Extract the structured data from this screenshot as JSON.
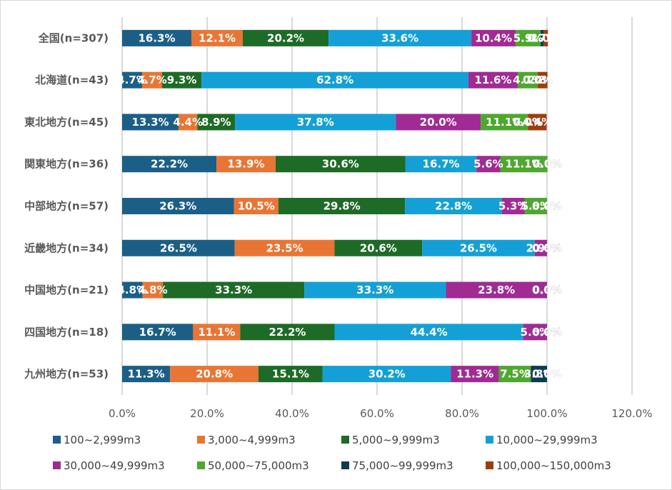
{
  "chart_data": {
    "type": "bar",
    "orientation": "horizontal",
    "stacked": true,
    "title": "",
    "xlabel": "",
    "ylabel": "",
    "xlim": [
      0,
      120
    ],
    "x_ticks": [
      "0.0%",
      "20.0%",
      "40.0%",
      "60.0%",
      "80.0%",
      "100.0%",
      "120.0%"
    ],
    "x_tick_values": [
      0,
      20,
      40,
      60,
      80,
      100,
      120
    ],
    "grid": true,
    "legend_position": "bottom",
    "categories": [
      "全国(n=307)",
      "北海道(n=43)",
      "東北地方(n=45)",
      "関東地方(n=36)",
      "中部地方(n=57)",
      "近畿地方(n=34)",
      "中国地方(n=21)",
      "四国地方(n=18)",
      "九州地方(n=53)"
    ],
    "series": [
      {
        "name": "100~2,999m3",
        "color": "#1b5f87",
        "values": [
          16.3,
          4.7,
          13.3,
          22.2,
          26.3,
          26.5,
          4.8,
          16.7,
          11.3
        ]
      },
      {
        "name": "3,000~4,999m3",
        "color": "#e97534",
        "values": [
          12.1,
          4.7,
          4.4,
          13.9,
          10.5,
          23.5,
          4.8,
          11.1,
          20.8
        ]
      },
      {
        "name": "5,000~9,999m3",
        "color": "#1e6b27",
        "values": [
          20.2,
          9.3,
          8.9,
          30.6,
          29.8,
          20.6,
          33.3,
          22.2,
          15.1
        ]
      },
      {
        "name": "10,000~29,999m3",
        "color": "#14a0d6",
        "values": [
          33.6,
          62.8,
          37.8,
          16.7,
          22.8,
          26.5,
          33.3,
          44.4,
          30.2
        ]
      },
      {
        "name": "30,000~49,999m3",
        "color": "#a02b93",
        "values": [
          10.4,
          11.6,
          20.0,
          5.6,
          5.3,
          2.9,
          23.8,
          5.6,
          11.3
        ]
      },
      {
        "name": "50,000~75,000m3",
        "color": "#4ea72e",
        "values": [
          5.9,
          4.7,
          11.1,
          11.1,
          5.3,
          0.0,
          0.0,
          0.0,
          7.5
        ]
      },
      {
        "name": "75,000~99,999m3",
        "color": "#0e3a52",
        "values": [
          0.7,
          0.0,
          0.0,
          0.0,
          0.0,
          0.0,
          0.0,
          0.0,
          3.8
        ]
      },
      {
        "name": "100,000~150,000m3",
        "color": "#a03c0e",
        "values": [
          1.0,
          2.3,
          4.4,
          0.0,
          0.0,
          0.0,
          0.0,
          0.0,
          0.0
        ]
      }
    ],
    "data_label_format": "0.0%"
  }
}
